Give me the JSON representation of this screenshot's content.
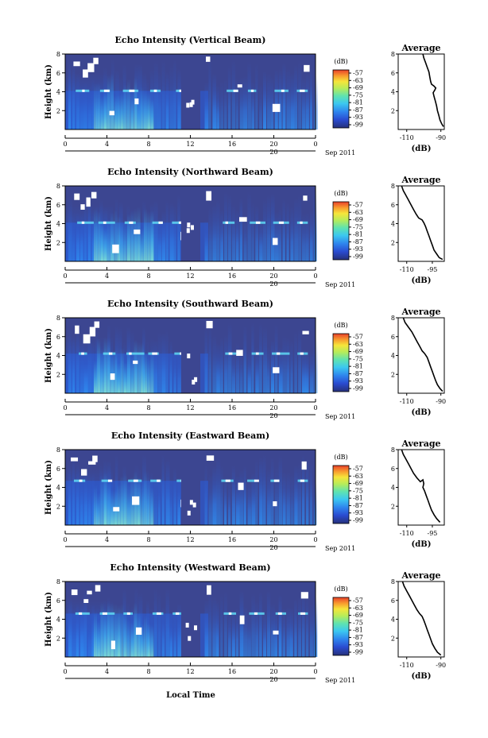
{
  "figure": {
    "xlabel": "Local Time",
    "date_label": "Sep 2011",
    "day_label": "20",
    "colorbar_unit": "(dB)",
    "average_title": "Average",
    "average_xlabel": "(dB)"
  },
  "chart_data": [
    {
      "type": "heatmap",
      "title": "Echo Intensity (Vertical Beam)",
      "ylabel": "Height (km)",
      "xlim": [
        0,
        24
      ],
      "xticks": [
        "0",
        "4",
        "8",
        "12",
        "16",
        "20",
        "0"
      ],
      "ylim": [
        0,
        8
      ],
      "yticks": [
        "2",
        "4",
        "6",
        "8"
      ],
      "layer_height_km": 4.1,
      "colorbar_ticks": [
        "-57",
        "-63",
        "-69",
        "-75",
        "-81",
        "-87",
        "-93",
        "-99"
      ],
      "average_profile": {
        "xlim": [
          -115,
          -88
        ],
        "xticks": [
          "-110",
          "-90"
        ],
        "yticks": [
          "2",
          "4",
          "6",
          "8"
        ],
        "points": [
          [
            -100.5,
            8
          ],
          [
            -100,
            7.6
          ],
          [
            -99,
            7.1
          ],
          [
            -98,
            6.6
          ],
          [
            -97,
            6.1
          ],
          [
            -96.5,
            5.6
          ],
          [
            -96,
            5.1
          ],
          [
            -95.5,
            4.8
          ],
          [
            -94,
            4.6
          ],
          [
            -93,
            4.4
          ],
          [
            -93.5,
            4.2
          ],
          [
            -94.5,
            3.9
          ],
          [
            -94,
            3.5
          ],
          [
            -93.2,
            3.0
          ],
          [
            -92.5,
            2.5
          ],
          [
            -92,
            2.0
          ],
          [
            -91.2,
            1.5
          ],
          [
            -90.5,
            1.0
          ],
          [
            -89.5,
            0.6
          ],
          [
            -88.5,
            0.3
          ]
        ]
      }
    },
    {
      "type": "heatmap",
      "title": "Echo Intensity (Northward Beam)",
      "ylabel": "Height (km)",
      "xlim": [
        0,
        24
      ],
      "xticks": [
        "0",
        "4",
        "8",
        "12",
        "16",
        "20",
        "0"
      ],
      "ylim": [
        0,
        8
      ],
      "yticks": [
        "2",
        "4",
        "6",
        "8"
      ],
      "layer_height_km": 4.1,
      "colorbar_ticks": [
        "-57",
        "-63",
        "-69",
        "-75",
        "-81",
        "-87",
        "-93",
        "-99"
      ],
      "average_profile": {
        "xlim": [
          -115,
          -88
        ],
        "xticks": [
          "-110",
          "-95"
        ],
        "yticks": [
          "2",
          "4",
          "6",
          "8"
        ],
        "points": [
          [
            -113,
            8
          ],
          [
            -112,
            7.5
          ],
          [
            -110.5,
            7.0
          ],
          [
            -109,
            6.5
          ],
          [
            -107.5,
            6.0
          ],
          [
            -106,
            5.5
          ],
          [
            -104.5,
            5.0
          ],
          [
            -103,
            4.6
          ],
          [
            -101,
            4.4
          ],
          [
            -100,
            4.1
          ],
          [
            -99,
            3.7
          ],
          [
            -98,
            3.2
          ],
          [
            -97,
            2.7
          ],
          [
            -96,
            2.2
          ],
          [
            -95,
            1.7
          ],
          [
            -94,
            1.2
          ],
          [
            -92.5,
            0.8
          ],
          [
            -91,
            0.4
          ],
          [
            -89,
            0.2
          ]
        ]
      }
    },
    {
      "type": "heatmap",
      "title": "Echo Intensity (Southward Beam)",
      "ylabel": "Height (km)",
      "xlim": [
        0,
        24
      ],
      "xticks": [
        "0",
        "4",
        "8",
        "12",
        "16",
        "20",
        "0"
      ],
      "ylim": [
        0,
        8
      ],
      "yticks": [
        "2",
        "4",
        "6",
        "8"
      ],
      "layer_height_km": 4.2,
      "colorbar_ticks": [
        "-57",
        "-63",
        "-69",
        "-75",
        "-81",
        "-87",
        "-93",
        "-99"
      ],
      "average_profile": {
        "xlim": [
          -115,
          -88
        ],
        "xticks": [
          "-110",
          "-90"
        ],
        "yticks": [
          "2",
          "4",
          "6",
          "8"
        ],
        "points": [
          [
            -112,
            8
          ],
          [
            -111,
            7.5
          ],
          [
            -109,
            7.0
          ],
          [
            -107,
            6.5
          ],
          [
            -105.5,
            6.0
          ],
          [
            -104,
            5.5
          ],
          [
            -102.5,
            5.0
          ],
          [
            -101,
            4.5
          ],
          [
            -99.5,
            4.2
          ],
          [
            -98,
            3.8
          ],
          [
            -97,
            3.3
          ],
          [
            -96,
            2.8
          ],
          [
            -95,
            2.3
          ],
          [
            -94,
            1.8
          ],
          [
            -93,
            1.3
          ],
          [
            -92,
            0.9
          ],
          [
            -90.5,
            0.5
          ],
          [
            -89,
            0.2
          ]
        ]
      }
    },
    {
      "type": "heatmap",
      "title": "Echo Intensity (Eastward Beam)",
      "ylabel": "Height (km)",
      "xlim": [
        0,
        24
      ],
      "xticks": [
        "0",
        "4",
        "8",
        "12",
        "16",
        "20",
        "0"
      ],
      "ylim": [
        0,
        8
      ],
      "yticks": [
        "2",
        "4",
        "6",
        "8"
      ],
      "layer_height_km": 4.7,
      "colorbar_ticks": [
        "-57",
        "-63",
        "-69",
        "-75",
        "-81",
        "-87",
        "-93",
        "-99"
      ],
      "average_profile": {
        "xlim": [
          -115,
          -88
        ],
        "xticks": [
          "-110",
          "-95"
        ],
        "yticks": [
          "2",
          "4",
          "6",
          "8"
        ],
        "points": [
          [
            -113,
            8
          ],
          [
            -112,
            7.5
          ],
          [
            -110.5,
            7.0
          ],
          [
            -109,
            6.5
          ],
          [
            -107.5,
            6.0
          ],
          [
            -106,
            5.5
          ],
          [
            -104,
            5.0
          ],
          [
            -102,
            4.6
          ],
          [
            -100.5,
            4.8
          ],
          [
            -100,
            4.4
          ],
          [
            -100.5,
            4.0
          ],
          [
            -99.5,
            3.6
          ],
          [
            -98.5,
            3.1
          ],
          [
            -97.5,
            2.6
          ],
          [
            -96.5,
            2.1
          ],
          [
            -95.5,
            1.6
          ],
          [
            -94,
            1.1
          ],
          [
            -92.5,
            0.7
          ],
          [
            -90.5,
            0.3
          ]
        ]
      }
    },
    {
      "type": "heatmap",
      "title": "Echo Intensity (Westward Beam)",
      "ylabel": "Height (km)",
      "xlim": [
        0,
        24
      ],
      "xticks": [
        "0",
        "4",
        "8",
        "12",
        "16",
        "20",
        "0"
      ],
      "ylim": [
        0,
        8
      ],
      "yticks": [
        "2",
        "4",
        "6",
        "8"
      ],
      "layer_height_km": 4.6,
      "colorbar_ticks": [
        "-57",
        "-63",
        "-69",
        "-75",
        "-81",
        "-87",
        "-93",
        "-99"
      ],
      "average_profile": {
        "xlim": [
          -115,
          -88
        ],
        "xticks": [
          "-110",
          "-90"
        ],
        "yticks": [
          "2",
          "4",
          "6",
          "8"
        ],
        "points": [
          [
            -112.5,
            8
          ],
          [
            -111.5,
            7.5
          ],
          [
            -110,
            7.0
          ],
          [
            -108.5,
            6.5
          ],
          [
            -107,
            6.0
          ],
          [
            -105.5,
            5.5
          ],
          [
            -104,
            5.0
          ],
          [
            -102.5,
            4.6
          ],
          [
            -101,
            4.3
          ],
          [
            -100,
            3.9
          ],
          [
            -99,
            3.4
          ],
          [
            -98,
            2.9
          ],
          [
            -97,
            2.4
          ],
          [
            -96,
            1.9
          ],
          [
            -95,
            1.4
          ],
          [
            -93.5,
            0.9
          ],
          [
            -92,
            0.5
          ],
          [
            -90,
            0.2
          ]
        ]
      }
    }
  ]
}
